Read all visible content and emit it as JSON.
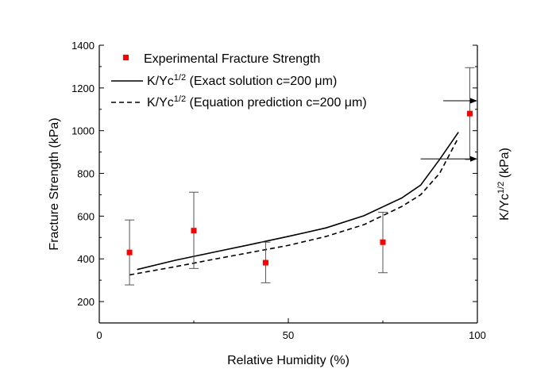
{
  "chart_data": {
    "type": "scatter",
    "xlabel": "Relative Humidity (%)",
    "ylabel": "Fracture Strength (kPa)",
    "ylabel_right_main": "K/Yc",
    "ylabel_right_sup": "1/2",
    "ylabel_right_unit": "(kPa)",
    "xlim": [
      0,
      100
    ],
    "ylim": [
      100,
      1400
    ],
    "xticks": [
      0,
      50,
      100
    ],
    "yticks": [
      200,
      400,
      600,
      800,
      1000,
      1200,
      1400
    ],
    "grid": false,
    "legend_position": "top-left",
    "legend": [
      {
        "prefix": "Experimental Fracture Strength",
        "sup": "",
        "suffix": ""
      },
      {
        "prefix": "K/Yc",
        "sup": "1/2",
        "suffix": " (Exact solution c=200 μm)"
      },
      {
        "prefix": "K/Yc",
        "sup": "1/2",
        "suffix": " (Equation prediction c=200 μm)"
      }
    ],
    "series": [
      {
        "name": "Experimental Fracture Strength",
        "kind": "scatter-errorbar",
        "color": "#ff0000",
        "x": [
          8,
          25,
          44,
          75,
          98
        ],
        "y": [
          430,
          532,
          382,
          478,
          1080
        ],
        "yerr_low": [
          278,
          355,
          288,
          335,
          865
        ],
        "yerr_high": [
          582,
          712,
          478,
          618,
          1295
        ]
      },
      {
        "name": "K/Yc1/2 (Exact solution c=200 μm)",
        "kind": "line",
        "style": "solid",
        "color": "#000000",
        "x": [
          10,
          20,
          30,
          40,
          50,
          60,
          70,
          80,
          85,
          90,
          95
        ],
        "y": [
          350,
          393,
          430,
          467,
          505,
          545,
          602,
          685,
          745,
          865,
          993
        ]
      },
      {
        "name": "K/Yc1/2 (Equation prediction c=200 μm)",
        "kind": "line",
        "style": "dashed",
        "color": "#000000",
        "x": [
          8,
          20,
          30,
          40,
          50,
          60,
          70,
          80,
          85,
          90,
          95
        ],
        "y": [
          325,
          363,
          397,
          430,
          463,
          505,
          560,
          645,
          700,
          800,
          968
        ]
      }
    ],
    "annotations": [
      {
        "type": "arrow",
        "from": [
          91,
          1140
        ],
        "to": [
          100,
          1140
        ],
        "direction": "right"
      },
      {
        "type": "arrow",
        "from": [
          85,
          868
        ],
        "to": [
          100,
          868
        ],
        "direction": "right"
      }
    ]
  }
}
